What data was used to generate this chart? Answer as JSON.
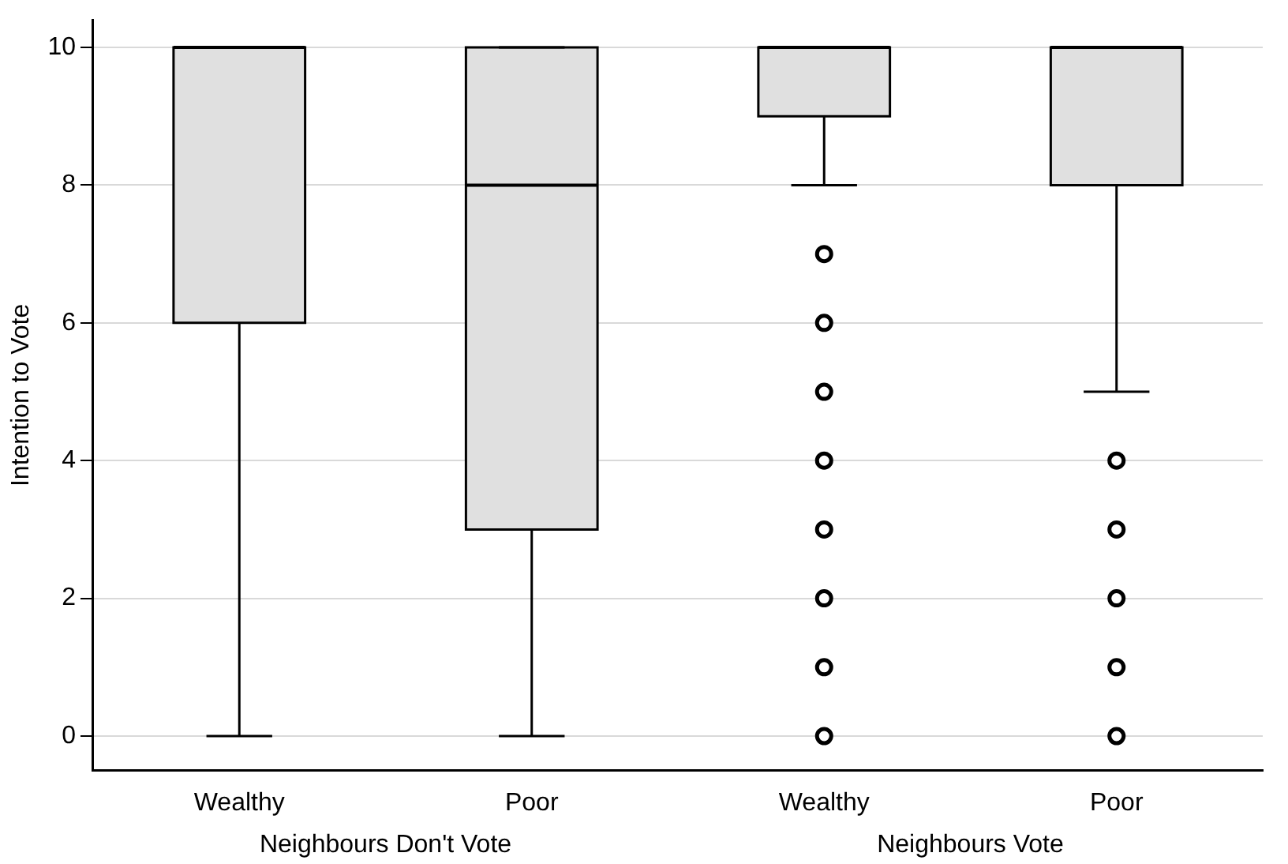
{
  "chart_data": {
    "type": "box",
    "ylabel": "Intention to Vote",
    "categories": [
      "Wealthy",
      "Poor",
      "Wealthy",
      "Poor"
    ],
    "series": [
      {
        "color": "#e0e0e0",
        "boxes": [
          {
            "low": 0,
            "q1": 6,
            "median": 10,
            "q3": 10,
            "high": 10
          },
          {
            "low": 0,
            "q1": 3,
            "median": 8,
            "q3": 10,
            "high": 10
          },
          {
            "low": 8,
            "q1": 9,
            "median": 10,
            "q3": 10,
            "high": 10,
            "outliers": [
              0,
              1,
              2,
              3,
              4,
              5,
              6,
              7
            ]
          },
          {
            "low": 5,
            "q1": 8,
            "median": 10,
            "q3": 10,
            "high": 10,
            "outliers": [
              0,
              1,
              2,
              3,
              4
            ]
          }
        ]
      }
    ],
    "ylim": [
      -0.5,
      10.4
    ],
    "yticks": [
      0,
      2,
      4,
      6,
      8,
      10
    ],
    "grid": "y",
    "legend": false,
    "annotations": [
      "Neighbours Don't Vote",
      "Neighbours Vote"
    ]
  }
}
